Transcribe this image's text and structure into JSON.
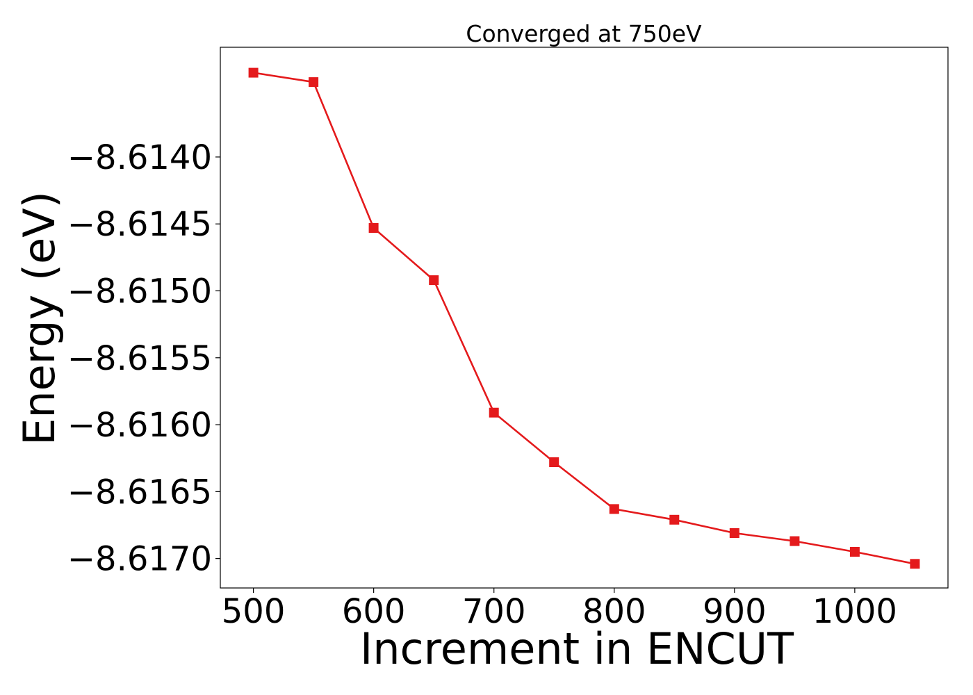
{
  "chart_data": {
    "type": "line",
    "title": "Converged at 750eV",
    "xlabel": "Increment in ENCUT",
    "ylabel": "Energy (eV)",
    "xlim": [
      472.5,
      1077.5
    ],
    "ylim": [
      -8.61722,
      -8.61318
    ],
    "x_ticks": [
      500,
      600,
      700,
      800,
      900,
      1000
    ],
    "y_ticks": [
      -8.614,
      -8.6145,
      -8.615,
      -8.6155,
      -8.616,
      -8.6165,
      -8.617
    ],
    "x_tick_labels": [
      "500",
      "600",
      "700",
      "800",
      "900",
      "1000"
    ],
    "y_tick_labels": [
      "−8.6140",
      "−8.6145",
      "−8.6150",
      "−8.6155",
      "−8.6160",
      "−8.6165",
      "−8.6170"
    ],
    "grid": false,
    "series": [
      {
        "color": "#e41a1c",
        "marker": "square",
        "x": [
          500,
          550,
          600,
          650,
          700,
          750,
          800,
          850,
          900,
          950,
          1000,
          1050
        ],
        "y": [
          -8.61337,
          -8.61344,
          -8.61453,
          -8.61492,
          -8.61591,
          -8.61628,
          -8.61663,
          -8.61671,
          -8.61681,
          -8.61687,
          -8.61695,
          -8.61704
        ]
      }
    ]
  }
}
